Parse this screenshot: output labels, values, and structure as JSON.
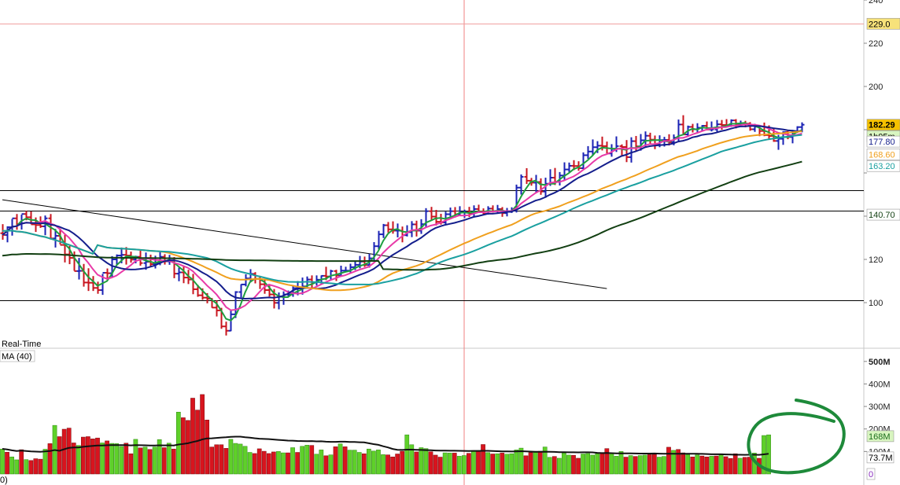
{
  "chart_data": [
    {
      "type": "line",
      "panel": "price",
      "ylim": [
        80,
        242
      ],
      "y_ticks": [
        100,
        120,
        140,
        160,
        180,
        200,
        220,
        240
      ],
      "y_tick_labels": [
        "100",
        "120",
        "",
        "",
        "",
        "200",
        "220",
        "240"
      ],
      "bar_count": 167,
      "bars": {
        "open": [
          132.1,
          131.3,
          134.9,
          139.0,
          136.3,
          141.0,
          139.5,
          136.2,
          135.9,
          135.3,
          139.0,
          129.7,
          130.9,
          126.7,
          122.3,
          120.7,
          114.6,
          114.7,
          109.3,
          109.2,
          106.8,
          105.8,
          113.8,
          113.6,
          120.0,
          121.8,
          122.1,
          121.8,
          119.9,
          121.2,
          118.3,
          118.9,
          117.8,
          118.3,
          121.2,
          119.1,
          120.5,
          113.4,
          114.0,
          111.6,
          110.7,
          106.2,
          103.4,
          102.3,
          101.8,
          97.7,
          96.4,
          89.0,
          87.0,
          94.6,
          104.9,
          108.4,
          111.2,
          113.3,
          111.0,
          108.5,
          105.8,
          103.8,
          99.9,
          102.7,
          103.8,
          103.8,
          106.7,
          106.7,
          107.5,
          110.7,
          109.3,
          110.6,
          112.4,
          112.1,
          114.6,
          112.6,
          114.8,
          114.8,
          116.4,
          117.5,
          119.0,
          117.4,
          120.5,
          126.1,
          131.6,
          135.8,
          133.9,
          133.3,
          133.3,
          131.2,
          132.6,
          136.2,
          133.3,
          136.3,
          142.3,
          139.8,
          137.4,
          137.1,
          140.9,
          142.3,
          140.9,
          141.8,
          141.9,
          141.2,
          143.3,
          142.1,
          141.1,
          143.5,
          142.3,
          143.3,
          141.4,
          142.0,
          142.9,
          153.2,
          158.2,
          156.4,
          155.5,
          155.8,
          151.4,
          155.0,
          157.8,
          155.9,
          158.8,
          161.6,
          163.3,
          163.2,
          162.2,
          168.2,
          169.9,
          171.9,
          172.6,
          172.4,
          169.0,
          171.1,
          172.4,
          172.0,
          167.3,
          174.7,
          172.3,
          175.1,
          177.2,
          175.4,
          173.1,
          175.2,
          175.3,
          174.2,
          176.3,
          182.4,
          177.8,
          181.3,
          180.2,
          180.9,
          181.8,
          180.1,
          180.1,
          182.5,
          182.2,
          181.9,
          184.3,
          182.6,
          183.0,
          182.8,
          180.2,
          181.4,
          179.4,
          177.5,
          177.1,
          174.8,
          175.8,
          178.9,
          176.6,
          179.2,
          181.2
        ],
        "high": [
          136.3,
          135.3,
          138.7,
          141.0,
          140.7,
          142.4,
          142.2,
          139.4,
          139.9,
          140.3,
          141.0,
          134.1,
          134.3,
          131.4,
          126.2,
          123.7,
          120.7,
          117.9,
          115.9,
          112.3,
          109.7,
          113.3,
          115.8,
          121.5,
          122.3,
          125.5,
          125.7,
          123.6,
          121.7,
          124.0,
          123.2,
          122.2,
          121.7,
          123.4,
          122.4,
          122.1,
          121.1,
          116.2,
          116.9,
          115.2,
          113.3,
          108.2,
          106.6,
          104.4,
          102.1,
          101.0,
          97.6,
          91.2,
          96.6,
          105.3,
          108.5,
          113.1,
          115.5,
          114.1,
          112.4,
          110.5,
          107.9,
          106.3,
          104.7,
          105.2,
          105.6,
          107.7,
          110.0,
          111.6,
          112.1,
          112.6,
          112.6,
          112.6,
          116.6,
          115.2,
          115.2,
          117.1,
          116.6,
          118.0,
          119.0,
          121.6,
          121.3,
          122.6,
          128.0,
          133.2,
          136.4,
          137.3,
          137.6,
          136.6,
          135.2,
          135.8,
          137.7,
          137.9,
          138.6,
          143.7,
          144.3,
          142.9,
          141.1,
          142.1,
          144.0,
          144.2,
          144.6,
          143.0,
          144.3,
          145.0,
          145.3,
          143.6,
          144.6,
          145.0,
          145.2,
          144.2,
          143.8,
          144.1,
          154.6,
          159.3,
          162.2,
          157.7,
          159.1,
          157.5,
          157.8,
          161.7,
          162.3,
          160.4,
          164.9,
          164.8,
          165.9,
          165.4,
          169.5,
          172.4,
          175.5,
          174.7,
          176.8,
          174.5,
          173.3,
          176.9,
          173.2,
          175.2,
          176.5,
          177.1,
          178.0,
          179.2,
          178.6,
          177.3,
          177.4,
          176.7,
          177.9,
          177.8,
          184.7,
          186.7,
          181.9,
          182.7,
          183.0,
          182.1,
          183.8,
          183.8,
          184.5,
          184.5,
          184.9,
          184.8,
          184.9,
          184.2,
          184.1,
          183.5,
          182.7,
          182.0,
          183.3,
          182.0,
          180.4,
          177.6,
          179.3,
          179.4,
          179.9,
          181.6,
          183.4
        ],
        "low": [
          129.1,
          127.9,
          131.0,
          133.7,
          133.8,
          138.1,
          136.3,
          132.7,
          134.6,
          131.2,
          129.2,
          125.5,
          127.0,
          118.6,
          117.8,
          114.7,
          110.7,
          107.4,
          105.4,
          105.4,
          104.1,
          103.6,
          110.1,
          111.5,
          117.3,
          118.2,
          117.6,
          118.5,
          118.2,
          117.1,
          115.2,
          116.5,
          115.8,
          117.3,
          117.6,
          117.5,
          111.3,
          109.9,
          109.0,
          108.6,
          103.9,
          102.7,
          101.3,
          99.7,
          97.6,
          93.6,
          87.9,
          84.8,
          86.8,
          92.9,
          102.3,
          107.5,
          109.4,
          108.9,
          106.3,
          104.1,
          102.8,
          97.3,
          96.9,
          99.0,
          102.6,
          102.7,
          103.4,
          103.7,
          106.9,
          106.9,
          107.9,
          108.7,
          110.4,
          110.7,
          110.0,
          112.0,
          114.0,
          113.8,
          115.1,
          115.9,
          116.5,
          116.2,
          119.4,
          124.7,
          129.9,
          132.4,
          131.9,
          130.2,
          127.9,
          130.6,
          130.3,
          130.6,
          131.8,
          134.9,
          137.9,
          135.7,
          136.1,
          136.2,
          139.8,
          139.4,
          140.1,
          139.2,
          139.6,
          139.9,
          141.6,
          140.5,
          140.7,
          141.7,
          141.2,
          139.7,
          139.9,
          141.5,
          141.7,
          150.0,
          154.9,
          154.1,
          150.8,
          149.9,
          148.5,
          154.0,
          154.4,
          154.2,
          156.6,
          160.4,
          161.3,
          161.0,
          161.8,
          166.5,
          168.1,
          169.2,
          170.4,
          169.0,
          167.5,
          169.7,
          167.8,
          165.0,
          164.8,
          170.3,
          170.3,
          172.2,
          173.3,
          171.0,
          171.9,
          172.2,
          172.7,
          172.8,
          174.8,
          177.6,
          177.0,
          178.7,
          178.6,
          179.1,
          179.7,
          179.2,
          178.9,
          180.0,
          181.3,
          181.3,
          180.6,
          181.8,
          181.1,
          179.5,
          179.0,
          177.0,
          177.0,
          175.6,
          174.4,
          170.7,
          173.0,
          175.6,
          173.7,
          178.5,
          178.8
        ],
        "close": [
          131.3,
          134.9,
          139.0,
          136.3,
          141.0,
          139.5,
          136.2,
          135.9,
          135.3,
          139.0,
          129.7,
          130.9,
          126.7,
          122.3,
          120.7,
          114.6,
          114.7,
          109.3,
          109.2,
          106.8,
          105.8,
          113.8,
          113.6,
          120.0,
          121.8,
          122.1,
          121.8,
          119.9,
          121.2,
          118.3,
          118.9,
          117.8,
          118.3,
          121.2,
          119.1,
          120.5,
          113.4,
          114.0,
          111.6,
          110.7,
          106.2,
          103.4,
          102.3,
          101.8,
          97.7,
          96.4,
          89.0,
          87.0,
          94.6,
          104.9,
          108.4,
          111.2,
          113.3,
          111.0,
          108.5,
          105.8,
          103.8,
          99.9,
          102.7,
          103.8,
          103.8,
          106.7,
          106.7,
          107.5,
          110.7,
          109.3,
          110.6,
          112.4,
          112.1,
          114.6,
          112.6,
          114.8,
          114.8,
          116.4,
          117.5,
          119.0,
          117.4,
          120.5,
          126.1,
          131.6,
          135.8,
          133.9,
          133.3,
          133.3,
          131.2,
          132.6,
          136.2,
          133.3,
          136.3,
          142.3,
          139.8,
          137.4,
          137.1,
          140.9,
          142.3,
          140.9,
          141.8,
          141.9,
          141.2,
          143.3,
          142.1,
          141.1,
          143.5,
          142.3,
          143.3,
          141.4,
          142.0,
          142.9,
          153.2,
          158.2,
          156.4,
          155.5,
          155.8,
          151.4,
          155.0,
          157.8,
          155.9,
          158.8,
          161.6,
          163.3,
          163.2,
          162.2,
          168.2,
          169.9,
          171.9,
          172.6,
          172.4,
          169.0,
          171.1,
          172.4,
          172.0,
          167.3,
          174.7,
          172.3,
          175.1,
          177.2,
          175.4,
          173.1,
          175.2,
          175.3,
          174.2,
          176.3,
          182.4,
          177.8,
          181.3,
          180.2,
          180.9,
          181.8,
          180.1,
          180.1,
          182.5,
          182.2,
          181.9,
          184.3,
          182.6,
          183.0,
          182.8,
          180.2,
          181.4,
          179.4,
          177.5,
          177.1,
          174.8,
          175.8,
          178.9,
          176.6,
          179.2,
          181.2,
          182.3
        ]
      },
      "series": [
        {
          "key": "ma_fast",
          "color": "#1e9e3e",
          "values": []
        },
        {
          "key": "ma_pink",
          "color": "#e83aa8",
          "values": []
        },
        {
          "key": "ma_navy",
          "color": "#141e8c",
          "values": []
        },
        {
          "key": "ma_orange",
          "color": "#f0a01e",
          "values": []
        },
        {
          "key": "ma_teal",
          "color": "#1aa0a0",
          "values": []
        },
        {
          "key": "ma_dark",
          "color": "#123f12",
          "values": []
        }
      ],
      "horizontal_lines": [
        {
          "y": 229.0,
          "color": "#f0a0a0"
        },
        {
          "y": 152.0,
          "color": "#000000"
        },
        {
          "y": 142.5,
          "color": "#000000"
        },
        {
          "y": 101.0,
          "color": "#000000"
        }
      ],
      "trendline": {
        "from": [
          0,
          142.5
        ],
        "to": [
          127,
          102.5
        ],
        "color": "#000000"
      },
      "price_labels": [
        {
          "text": "229.0",
          "y": 229.0,
          "bg": "#f7e27a",
          "fg": "#000000"
        },
        {
          "text": "182.29",
          "y": 182.29,
          "bg": "#f5c200",
          "fg": "#000000",
          "bold": true
        },
        {
          "text": "1h05m",
          "y": 177.0,
          "bg": "#d8f5c0",
          "fg": "#000000"
        },
        {
          "text": "177.80",
          "y": 174.5,
          "bg": "#ffffff",
          "fg": "#141e8c"
        },
        {
          "text": "168.60",
          "y": 168.6,
          "bg": "#ffffff",
          "fg": "#f0a01e"
        },
        {
          "text": "163.20",
          "y": 163.2,
          "bg": "#ffffff",
          "fg": "#1aa0a0"
        },
        {
          "text": "140.70",
          "y": 140.7,
          "bg": "#ffffff",
          "fg": "#123f12"
        }
      ],
      "realtime_label": "Real-Time"
    },
    {
      "type": "bar",
      "panel": "volume",
      "ylim": [
        0,
        560
      ],
      "y_ticks": [
        100,
        200,
        300,
        400,
        500
      ],
      "y_tick_labels": [
        "100M",
        "200M",
        "300M",
        "400M",
        "500M"
      ],
      "ma_label": "MA (40)",
      "volume_values": [
        111,
        97,
        76,
        63,
        108,
        64,
        60,
        68,
        66,
        110,
        135,
        216,
        166,
        199,
        204,
        138,
        127,
        164,
        166,
        156,
        160,
        138,
        147,
        136,
        135,
        122,
        137,
        90,
        154,
        116,
        120,
        109,
        120,
        153,
        117,
        137,
        111,
        275,
        250,
        238,
        337,
        284,
        353,
        240,
        120,
        130,
        130,
        114,
        154,
        136,
        133,
        123,
        96,
        91,
        112,
        101,
        91,
        98,
        100,
        94,
        94,
        117,
        96,
        123,
        128,
        127,
        88,
        107,
        81,
        85,
        121,
        134,
        121,
        106,
        106,
        96,
        90,
        111,
        102,
        107,
        86,
        85,
        76,
        89,
        101,
        174,
        130,
        98,
        117,
        113,
        99,
        84,
        75,
        94,
        93,
        93,
        79,
        82,
        92,
        104,
        101,
        131,
        95,
        89,
        90,
        93,
        88,
        90,
        107,
        115,
        81,
        95,
        96,
        101,
        120,
        74,
        78,
        70,
        93,
        84,
        83,
        70,
        89,
        91,
        84,
        90,
        90,
        113,
        91,
        79,
        100,
        75,
        82,
        78,
        82,
        84,
        86,
        87,
        75,
        78,
        119,
        105,
        109,
        94,
        86,
        76,
        85,
        80,
        76,
        79,
        80,
        89,
        77,
        69,
        90,
        70,
        74,
        75,
        93,
        70,
        171,
        174
      ],
      "volume_up": [
        true,
        false,
        true,
        true,
        false,
        true,
        false,
        false,
        false,
        true,
        false,
        true,
        false,
        false,
        false,
        false,
        true,
        false,
        false,
        false,
        false,
        true,
        false,
        true,
        true,
        true,
        false,
        false,
        true,
        false,
        true,
        false,
        true,
        true,
        false,
        true,
        false,
        true,
        false,
        false,
        false,
        false,
        false,
        false,
        false,
        false,
        false,
        false,
        true,
        true,
        true,
        true,
        true,
        false,
        false,
        false,
        false,
        false,
        true,
        true,
        false,
        true,
        false,
        true,
        true,
        false,
        true,
        true,
        false,
        true,
        false,
        true,
        false,
        true,
        true,
        true,
        false,
        true,
        true,
        true,
        true,
        false,
        false,
        false,
        false,
        true,
        true,
        false,
        true,
        true,
        false,
        false,
        false,
        true,
        true,
        false,
        true,
        true,
        false,
        true,
        false,
        false,
        true,
        false,
        true,
        false,
        true,
        true,
        true,
        true,
        false,
        false,
        true,
        false,
        true,
        true,
        false,
        true,
        true,
        true,
        false,
        false,
        true,
        true,
        true,
        true,
        false,
        false,
        true,
        true,
        true,
        false,
        true,
        false,
        true,
        true,
        false,
        false,
        true,
        true,
        false,
        true,
        false,
        false,
        true,
        false,
        true,
        false,
        false,
        true,
        false,
        true,
        false,
        false,
        false,
        true,
        false,
        false,
        true,
        false,
        true,
        true
      ],
      "ma_values": [],
      "value_labels": [
        {
          "text": "168M",
          "y": 168,
          "bg": "#d8f5c0",
          "fg": "#1b6e1b"
        },
        {
          "text": "73.7M",
          "y": 73.7,
          "bg": "#ffffff",
          "fg": "#000000"
        },
        {
          "text": "0",
          "y": 0,
          "bg": "#ffffff",
          "fg": "#8a2fbf"
        }
      ],
      "corner_label": "0)",
      "annotation": {
        "shape": "circle",
        "color": "#1e8a3a"
      }
    }
  ]
}
